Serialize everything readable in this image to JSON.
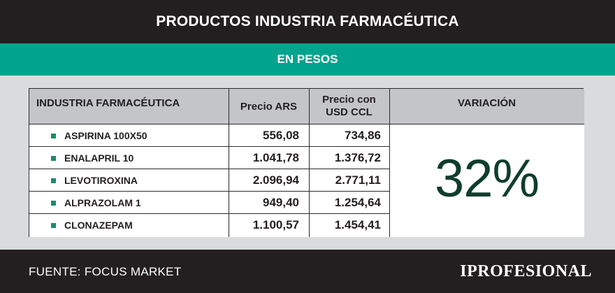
{
  "header": {
    "title": "PRODUCTOS INDUSTRIA FARMACÉUTICA",
    "subtitle": "EN PESOS"
  },
  "table": {
    "columns": [
      "INDUSTRIA FARMACÉUTICA",
      "Precio ARS",
      "Precio con USD CCL",
      "VARIACIÓN"
    ],
    "rows": [
      {
        "name": "ASPIRINA 100X50",
        "ars": "556,08",
        "usd_ccl": "734,86"
      },
      {
        "name": "ENALAPRIL 10",
        "ars": "1.041,78",
        "usd_ccl": "1.376,72"
      },
      {
        "name": "LEVOTIROXINA",
        "ars": "2.096,94",
        "usd_ccl": "2.771,11"
      },
      {
        "name": "ALPRAZOLAM 1",
        "ars": "949,40",
        "usd_ccl": "1.254,64"
      },
      {
        "name": "CLONAZEPAM",
        "ars": "1.100,57",
        "usd_ccl": "1.454,41"
      }
    ],
    "variation": "32%"
  },
  "footer": {
    "source": "FUENTE: FOCUS MARKET",
    "logo": "IPROFESIONAL"
  },
  "colors": {
    "title_bg": "#231f20",
    "accent": "#00a48c",
    "variation_text": "#0f3d2e",
    "bullet": "#1a8a6e"
  }
}
